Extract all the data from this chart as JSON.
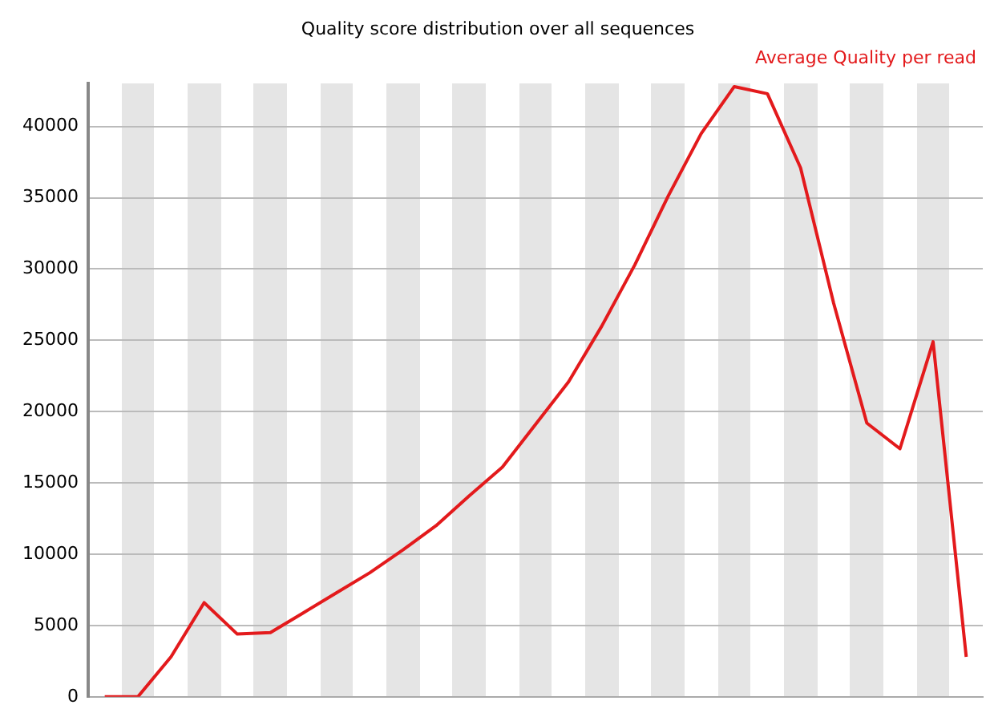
{
  "chart_data": {
    "type": "line",
    "title": "Quality score distribution over all sequences",
    "categories": [
      null,
      null,
      null,
      null,
      null,
      null,
      null,
      null,
      null,
      null,
      null,
      null,
      null,
      null,
      null,
      null,
      null,
      null,
      null,
      null,
      null,
      null,
      null,
      null,
      null,
      null,
      null
    ],
    "series": [
      {
        "name": "Average Quality per read",
        "color": "#e31a1c",
        "values": [
          0,
          0,
          2800,
          6600,
          4400,
          4500,
          5900,
          7300,
          8700,
          10300,
          12000,
          14100,
          16100,
          19100,
          22100,
          26000,
          30300,
          35100,
          39500,
          42800,
          42300,
          37100,
          27600,
          19200,
          17400,
          24900,
          2800
        ]
      }
    ],
    "ylim": [
      0,
      43000
    ],
    "yticks": [
      0,
      5000,
      10000,
      15000,
      20000,
      25000,
      30000,
      35000,
      40000
    ],
    "grid": "y",
    "legend": "top right",
    "tick_labels": "y",
    "marker": "none",
    "line_style": "solid"
  }
}
